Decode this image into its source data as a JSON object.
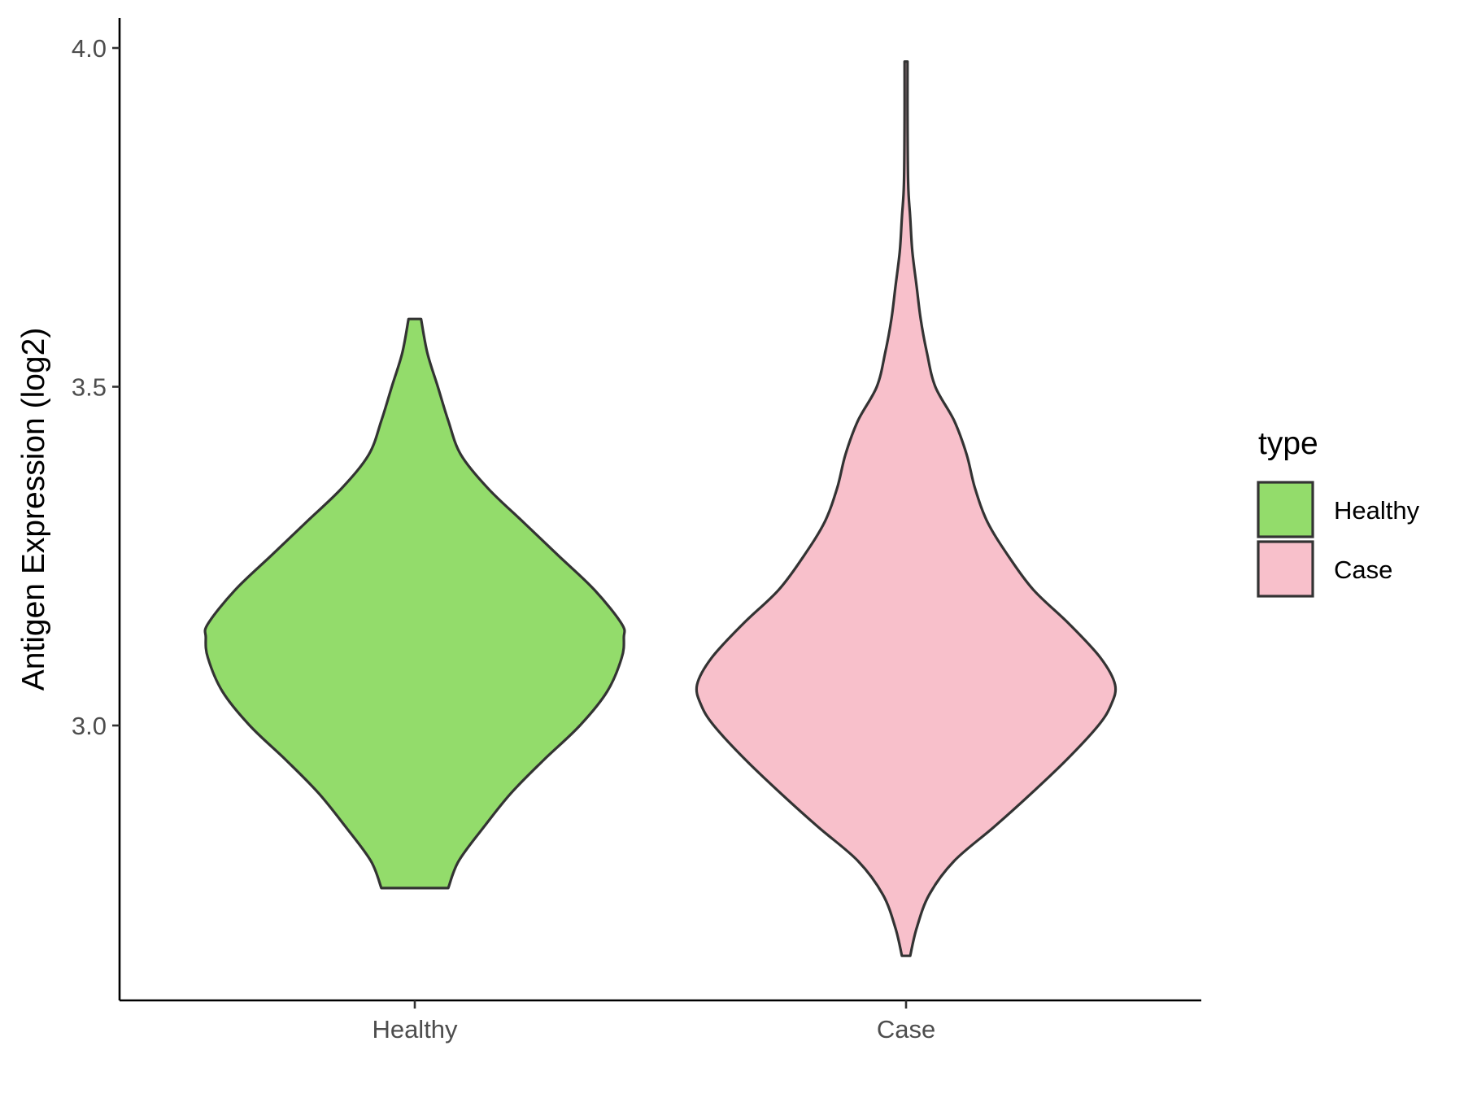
{
  "chart_data": {
    "type": "violin",
    "title": "",
    "xlabel": "",
    "ylabel": "Antigen Expression (log2)",
    "ylim": [
      2.58,
      4.04
    ],
    "yticks": [
      3.0,
      3.5,
      4.0
    ],
    "ytick_labels": [
      "3.0",
      "3.5",
      "4.0"
    ],
    "categories": [
      "Healthy",
      "Case"
    ],
    "legend": {
      "title": "type",
      "position": "right",
      "entries": [
        "Healthy",
        "Case"
      ]
    },
    "grid": false,
    "series": [
      {
        "name": "Healthy",
        "color": "#93DC6B",
        "outline": "#333333",
        "y_min": 2.76,
        "y_max": 3.6,
        "profile": [
          [
            2.76,
            0.16
          ],
          [
            2.8,
            0.21
          ],
          [
            2.85,
            0.33
          ],
          [
            2.9,
            0.46
          ],
          [
            2.95,
            0.62
          ],
          [
            3.0,
            0.79
          ],
          [
            3.05,
            0.92
          ],
          [
            3.1,
            0.99
          ],
          [
            3.13,
            1.0
          ],
          [
            3.15,
            0.99
          ],
          [
            3.2,
            0.86
          ],
          [
            3.25,
            0.69
          ],
          [
            3.3,
            0.52
          ],
          [
            3.35,
            0.35
          ],
          [
            3.4,
            0.22
          ],
          [
            3.45,
            0.16
          ],
          [
            3.5,
            0.11
          ],
          [
            3.55,
            0.06
          ],
          [
            3.6,
            0.03
          ]
        ]
      },
      {
        "name": "Case",
        "color": "#F8C0CB",
        "outline": "#333333",
        "y_min": 2.66,
        "y_max": 3.98,
        "profile": [
          [
            2.66,
            0.02
          ],
          [
            2.7,
            0.05
          ],
          [
            2.75,
            0.11
          ],
          [
            2.8,
            0.23
          ],
          [
            2.85,
            0.42
          ],
          [
            2.9,
            0.6
          ],
          [
            2.95,
            0.77
          ],
          [
            3.0,
            0.92
          ],
          [
            3.03,
            0.98
          ],
          [
            3.06,
            1.0
          ],
          [
            3.1,
            0.93
          ],
          [
            3.15,
            0.78
          ],
          [
            3.2,
            0.61
          ],
          [
            3.25,
            0.49
          ],
          [
            3.3,
            0.39
          ],
          [
            3.35,
            0.33
          ],
          [
            3.4,
            0.29
          ],
          [
            3.45,
            0.23
          ],
          [
            3.5,
            0.14
          ],
          [
            3.55,
            0.1
          ],
          [
            3.6,
            0.07
          ],
          [
            3.65,
            0.05
          ],
          [
            3.7,
            0.03
          ],
          [
            3.75,
            0.02
          ],
          [
            3.8,
            0.01
          ],
          [
            3.9,
            0.007
          ],
          [
            3.98,
            0.007
          ]
        ]
      }
    ]
  }
}
